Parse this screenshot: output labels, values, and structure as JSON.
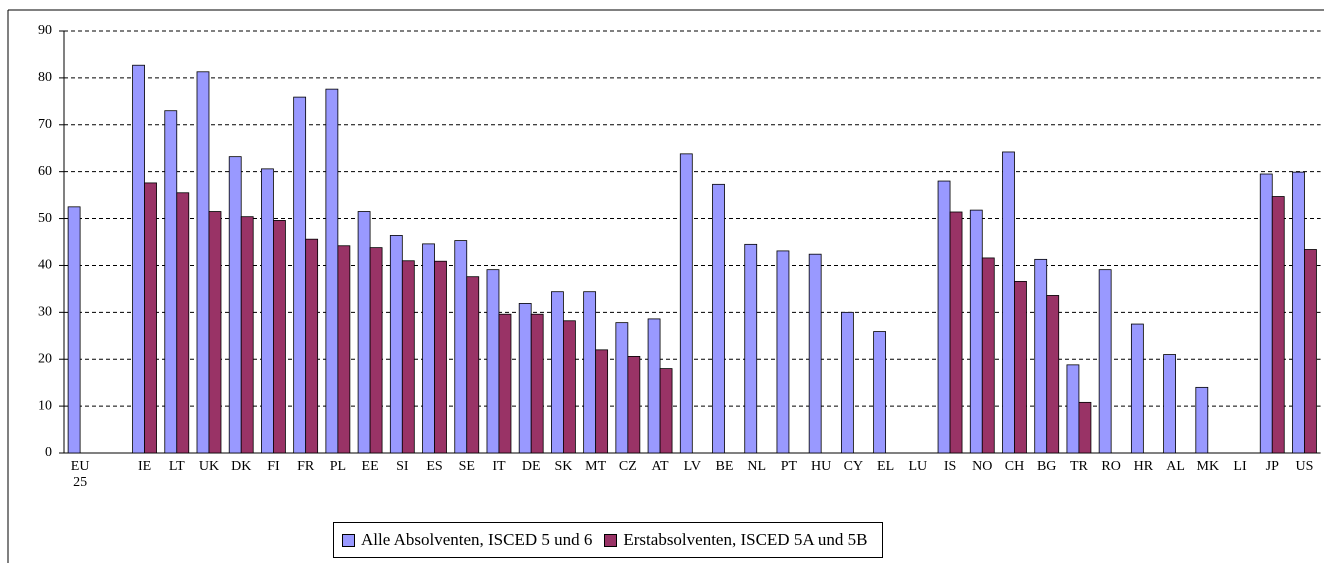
{
  "chart_data": {
    "type": "bar",
    "categories": [
      "EU 25",
      null,
      "IE",
      "LT",
      "UK",
      "DK",
      "FI",
      "FR",
      "PL",
      "EE",
      "SI",
      "ES",
      "SE",
      "IT",
      "DE",
      "SK",
      "MT",
      "CZ",
      "AT",
      "LV",
      "BE",
      "NL",
      "PT",
      "HU",
      "CY",
      "EL",
      "LU",
      "IS",
      "NO",
      "CH",
      "BG",
      "TR",
      "RO",
      "HR",
      "AL",
      "MK",
      "LI",
      "JP",
      "US"
    ],
    "series": [
      {
        "name": "Alle Absolventen, ISCED 5 und 6",
        "color": "#9999ff",
        "values": [
          52.5,
          null,
          82.7,
          73,
          81.3,
          63.2,
          60.6,
          75.9,
          77.6,
          51.5,
          46.4,
          44.6,
          45.3,
          39.1,
          31.9,
          34.4,
          34.4,
          27.8,
          28.6,
          63.8,
          57.3,
          44.5,
          43.1,
          42.4,
          30,
          25.9,
          null,
          58,
          51.8,
          64.2,
          41.3,
          18.8,
          39.1,
          27.5,
          21,
          14,
          null,
          59.5,
          59.9
        ]
      },
      {
        "name": "Erstabsolventen, ISCED 5A und 5B",
        "color": "#993366",
        "values": [
          null,
          null,
          57.6,
          55.5,
          51.5,
          50.4,
          49.6,
          45.6,
          44.2,
          43.8,
          41,
          40.9,
          37.6,
          29.6,
          29.6,
          28.2,
          22,
          20.6,
          18,
          null,
          null,
          null,
          null,
          null,
          null,
          null,
          null,
          51.4,
          41.6,
          36.6,
          33.6,
          10.8,
          null,
          null,
          null,
          null,
          null,
          54.7,
          43.4
        ]
      }
    ],
    "ylim": [
      0,
      90
    ],
    "yticks": [
      0,
      10,
      20,
      30,
      40,
      50,
      60,
      70,
      80,
      90
    ],
    "grid": true,
    "legend": "bottom"
  }
}
